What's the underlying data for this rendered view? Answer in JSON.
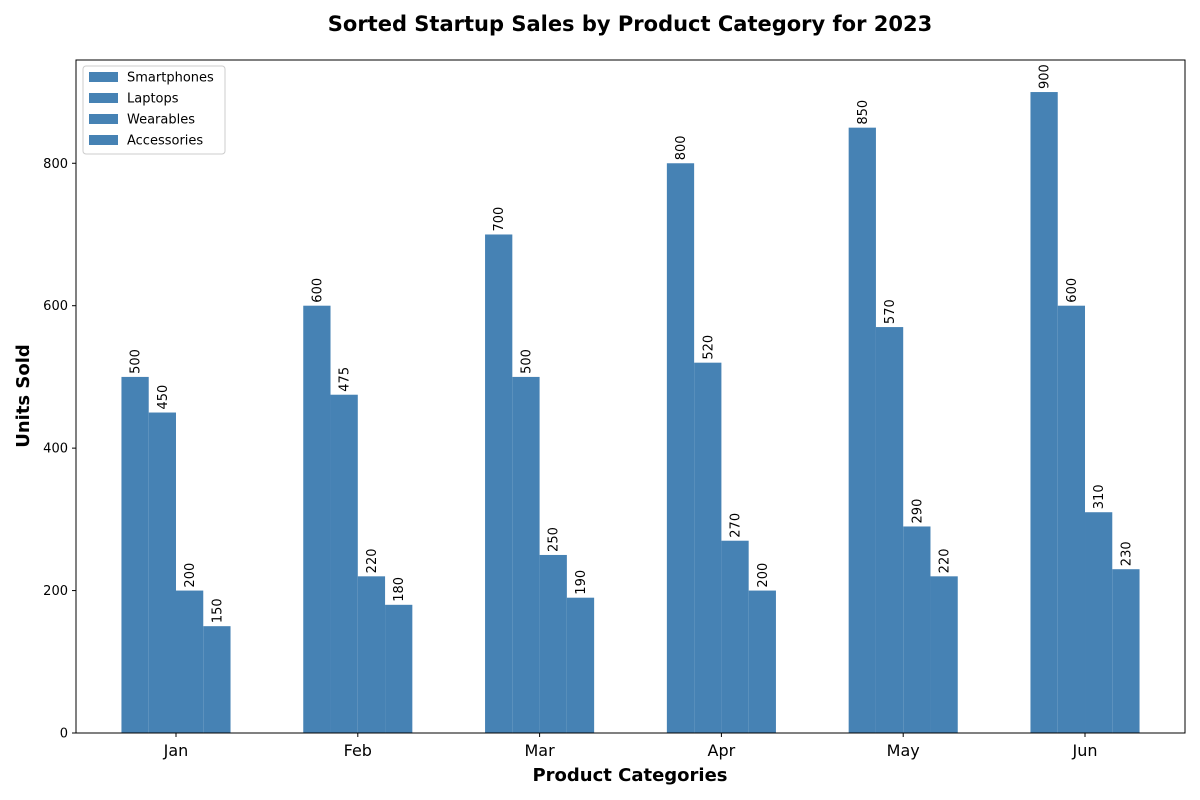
{
  "chart_data": {
    "type": "bar",
    "title": "Sorted Startup Sales by Product Category for 2023",
    "xlabel": "Product Categories",
    "ylabel": "Units Sold",
    "categories": [
      "Jan",
      "Feb",
      "Mar",
      "Apr",
      "May",
      "Jun"
    ],
    "series": [
      {
        "name": "Smartphones",
        "values": [
          500,
          600,
          700,
          800,
          850,
          900
        ]
      },
      {
        "name": "Laptops",
        "values": [
          450,
          475,
          500,
          520,
          570,
          600
        ]
      },
      {
        "name": "Wearables",
        "values": [
          200,
          220,
          250,
          270,
          290,
          310
        ]
      },
      {
        "name": "Accessories",
        "values": [
          150,
          180,
          190,
          200,
          220,
          230
        ]
      }
    ],
    "ylim": [
      0,
      945
    ],
    "yticks": [
      0,
      200,
      400,
      600,
      800
    ],
    "grid": false,
    "legend_position": "top-left",
    "bar_color": "#4682b4"
  }
}
